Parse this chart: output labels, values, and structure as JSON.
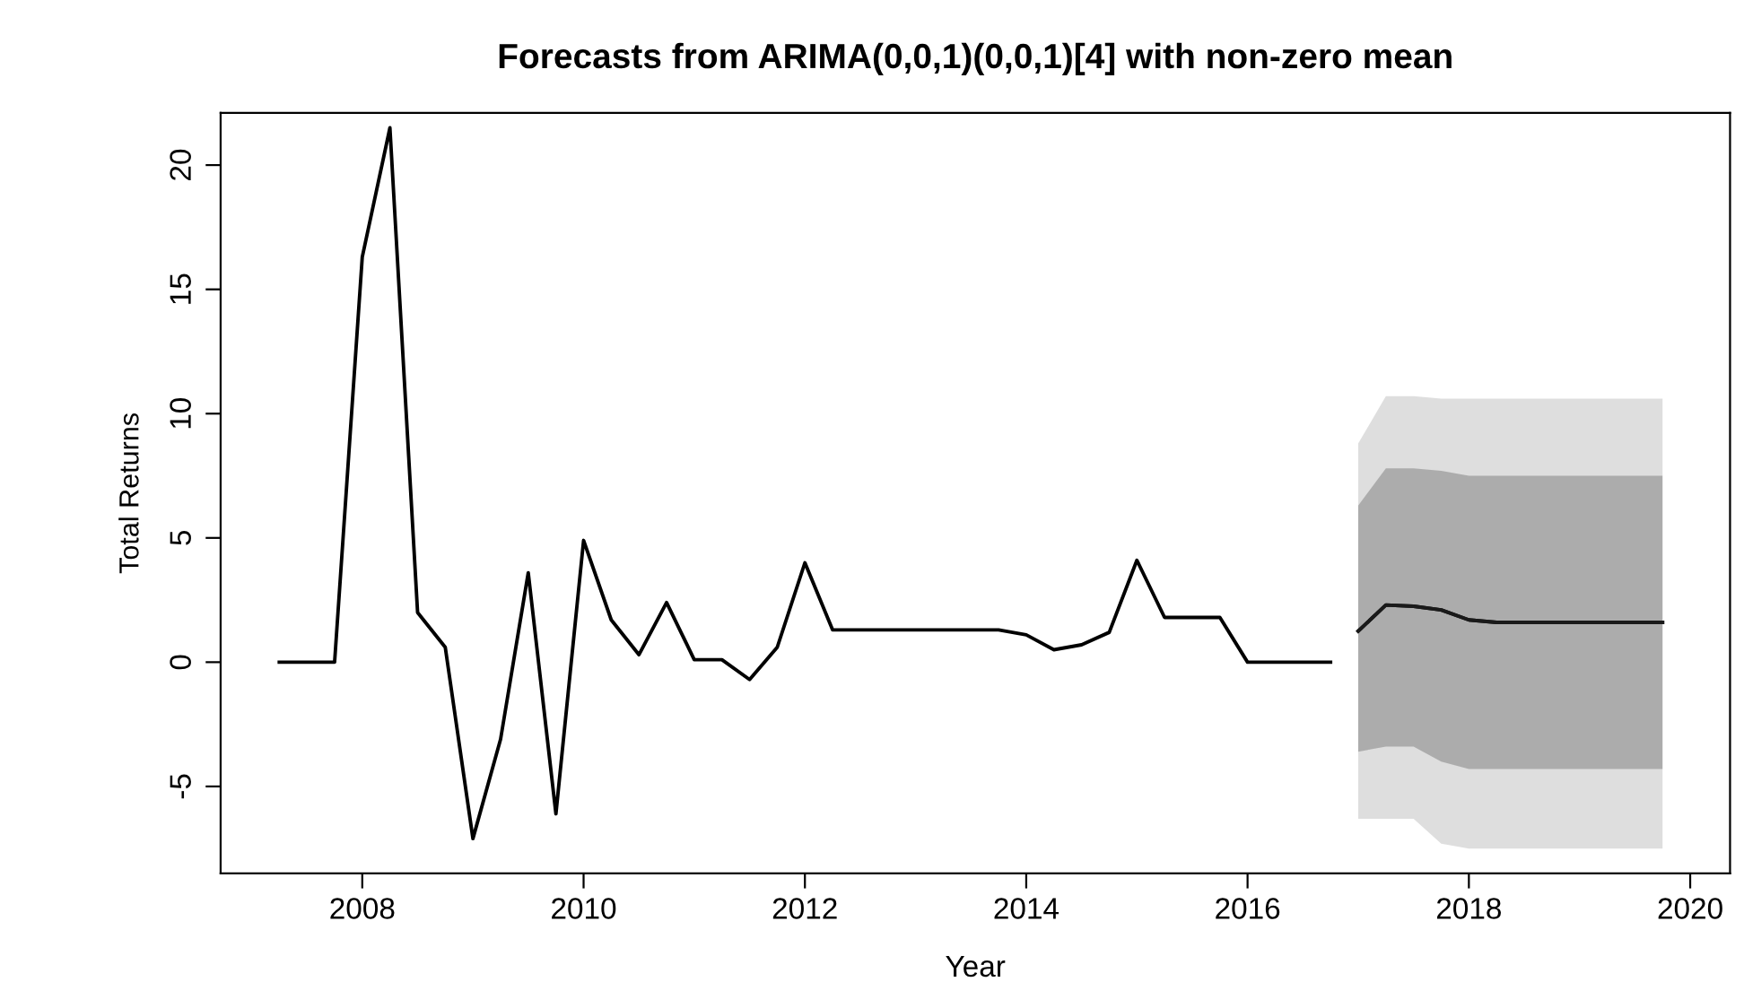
{
  "chart_data": {
    "type": "line",
    "title": "Forecasts from ARIMA(0,0,1)(0,0,1)[4] with non-zero mean",
    "xlabel": "Year",
    "ylabel": "Total Returns",
    "xlim": [
      2006.72,
      2020.36
    ],
    "ylim": [
      -8.5,
      22.1
    ],
    "xticks": [
      2008,
      2010,
      2012,
      2014,
      2016,
      2018,
      2020
    ],
    "yticks": [
      -5,
      0,
      5,
      10,
      15,
      20
    ],
    "grid": false,
    "legend": false,
    "series": [
      {
        "color": "#000000",
        "x": [
          2007.25,
          2007.5,
          2007.75,
          2008.0,
          2008.25,
          2008.5,
          2008.75,
          2009.0,
          2009.25,
          2009.5,
          2009.75,
          2010.0,
          2010.25,
          2010.5,
          2010.75,
          2011.0,
          2011.25,
          2011.5,
          2011.75,
          2012.0,
          2012.25,
          2012.5,
          2012.75,
          2013.0,
          2013.25,
          2013.5,
          2013.75,
          2014.0,
          2014.25,
          2014.5,
          2014.75,
          2015.0,
          2015.25,
          2015.5,
          2015.75,
          2016.0,
          2016.25,
          2016.5,
          2016.75
        ],
        "values": [
          0,
          0,
          0,
          16.3,
          21.5,
          2.0,
          0.6,
          -7.1,
          -3.1,
          3.6,
          -6.1,
          4.9,
          1.7,
          0.3,
          2.4,
          0.1,
          0.1,
          -0.7,
          0.6,
          4.0,
          1.3,
          1.3,
          1.3,
          1.3,
          1.3,
          1.3,
          1.3,
          1.1,
          0.5,
          0.7,
          1.2,
          4.1,
          1.8,
          1.8,
          1.8,
          0,
          0,
          0,
          0
        ]
      },
      {
        "color": "#1a1a1a",
        "x": [
          2017.0,
          2017.25,
          2017.5,
          2017.75,
          2018.0,
          2018.25,
          2018.5,
          2018.75,
          2019.0,
          2019.25,
          2019.5,
          2019.75
        ],
        "values": [
          1.25,
          2.3,
          2.25,
          2.1,
          1.7,
          1.6,
          1.6,
          1.6,
          1.6,
          1.6,
          1.6,
          1.6
        ],
        "lower": [
          -6.3,
          -6.3,
          -6.3,
          -7.3,
          -7.5,
          -7.5,
          -7.5,
          -7.5,
          -7.5,
          -7.5,
          -7.5,
          -7.5
        ],
        "upper": [
          8.8,
          10.7,
          10.7,
          10.6,
          10.6,
          10.6,
          10.6,
          10.6,
          10.6,
          10.6,
          10.6,
          10.6
        ]
      },
      {
        "color": "#1a1a1a",
        "x": [
          2017.0,
          2017.25,
          2017.5,
          2017.75,
          2018.0,
          2018.25,
          2018.5,
          2018.75,
          2019.0,
          2019.25,
          2019.5,
          2019.75
        ],
        "values": [
          1.25,
          2.3,
          2.25,
          2.1,
          1.7,
          1.6,
          1.6,
          1.6,
          1.6,
          1.6,
          1.6,
          1.6
        ],
        "lower": [
          -3.6,
          -3.4,
          -3.4,
          -4.0,
          -4.3,
          -4.3,
          -4.3,
          -4.3,
          -4.3,
          -4.3,
          -4.3,
          -4.3
        ],
        "upper": [
          6.3,
          7.8,
          7.8,
          7.7,
          7.5,
          7.5,
          7.5,
          7.5,
          7.5,
          7.5,
          7.5,
          7.5
        ]
      }
    ]
  }
}
